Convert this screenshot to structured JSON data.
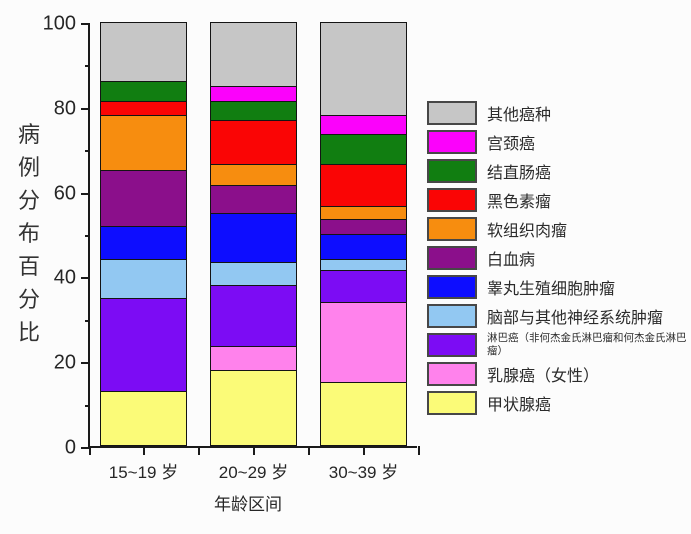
{
  "chart_data": {
    "type": "bar",
    "stacked": true,
    "orientation": "vertical",
    "title": "",
    "xlabel": "年龄区间",
    "ylabel": "病例分布百分比",
    "categories": [
      "15~19 岁",
      "20~29 岁",
      "30~39 岁"
    ],
    "ylim": [
      0,
      100
    ],
    "y_major_ticks": [
      0,
      20,
      40,
      60,
      80,
      100
    ],
    "y_minor_ticks": [
      10,
      30,
      50,
      70,
      90
    ],
    "grid": false,
    "legend_position": "right",
    "legend_order": "top-to-bottom is reverse of stack order",
    "series_stack_bottom_to_top": [
      {
        "name": "甲状腺癌",
        "color": "#FBFB78",
        "values": [
          13,
          18,
          15
        ]
      },
      {
        "name": "乳腺癌（女性）",
        "color": "#FF82EC",
        "values": [
          0,
          5.5,
          19
        ]
      },
      {
        "name": "淋巴癌（非何杰金氏淋巴瘤和何杰金氏淋巴瘤）",
        "color": "#7C0CF4",
        "values": [
          22,
          14.5,
          7.5
        ],
        "small_label": true
      },
      {
        "name": "脑部与其他神经系统肿瘤",
        "color": "#92C8F2",
        "values": [
          9,
          5.5,
          2.5
        ]
      },
      {
        "name": "睾丸生殖细胞肿瘤",
        "color": "#0D0DFF",
        "values": [
          8,
          11.5,
          6
        ]
      },
      {
        "name": "白血病",
        "color": "#8B0F8B",
        "values": [
          13,
          6.5,
          3.5
        ]
      },
      {
        "name": "软组织肉瘤",
        "color": "#F78D0F",
        "values": [
          13,
          5,
          3
        ]
      },
      {
        "name": "黑色素瘤",
        "color": "#FA0505",
        "values": [
          3.5,
          10.5,
          10
        ]
      },
      {
        "name": "结直肠癌",
        "color": "#117E11",
        "values": [
          4.5,
          4.5,
          7
        ]
      },
      {
        "name": "宫颈癌",
        "color": "#FB02FB",
        "values": [
          0,
          3.5,
          4.5
        ]
      },
      {
        "name": "其他癌种",
        "color": "#C6C6C6",
        "values": [
          14,
          15,
          22
        ]
      }
    ]
  }
}
